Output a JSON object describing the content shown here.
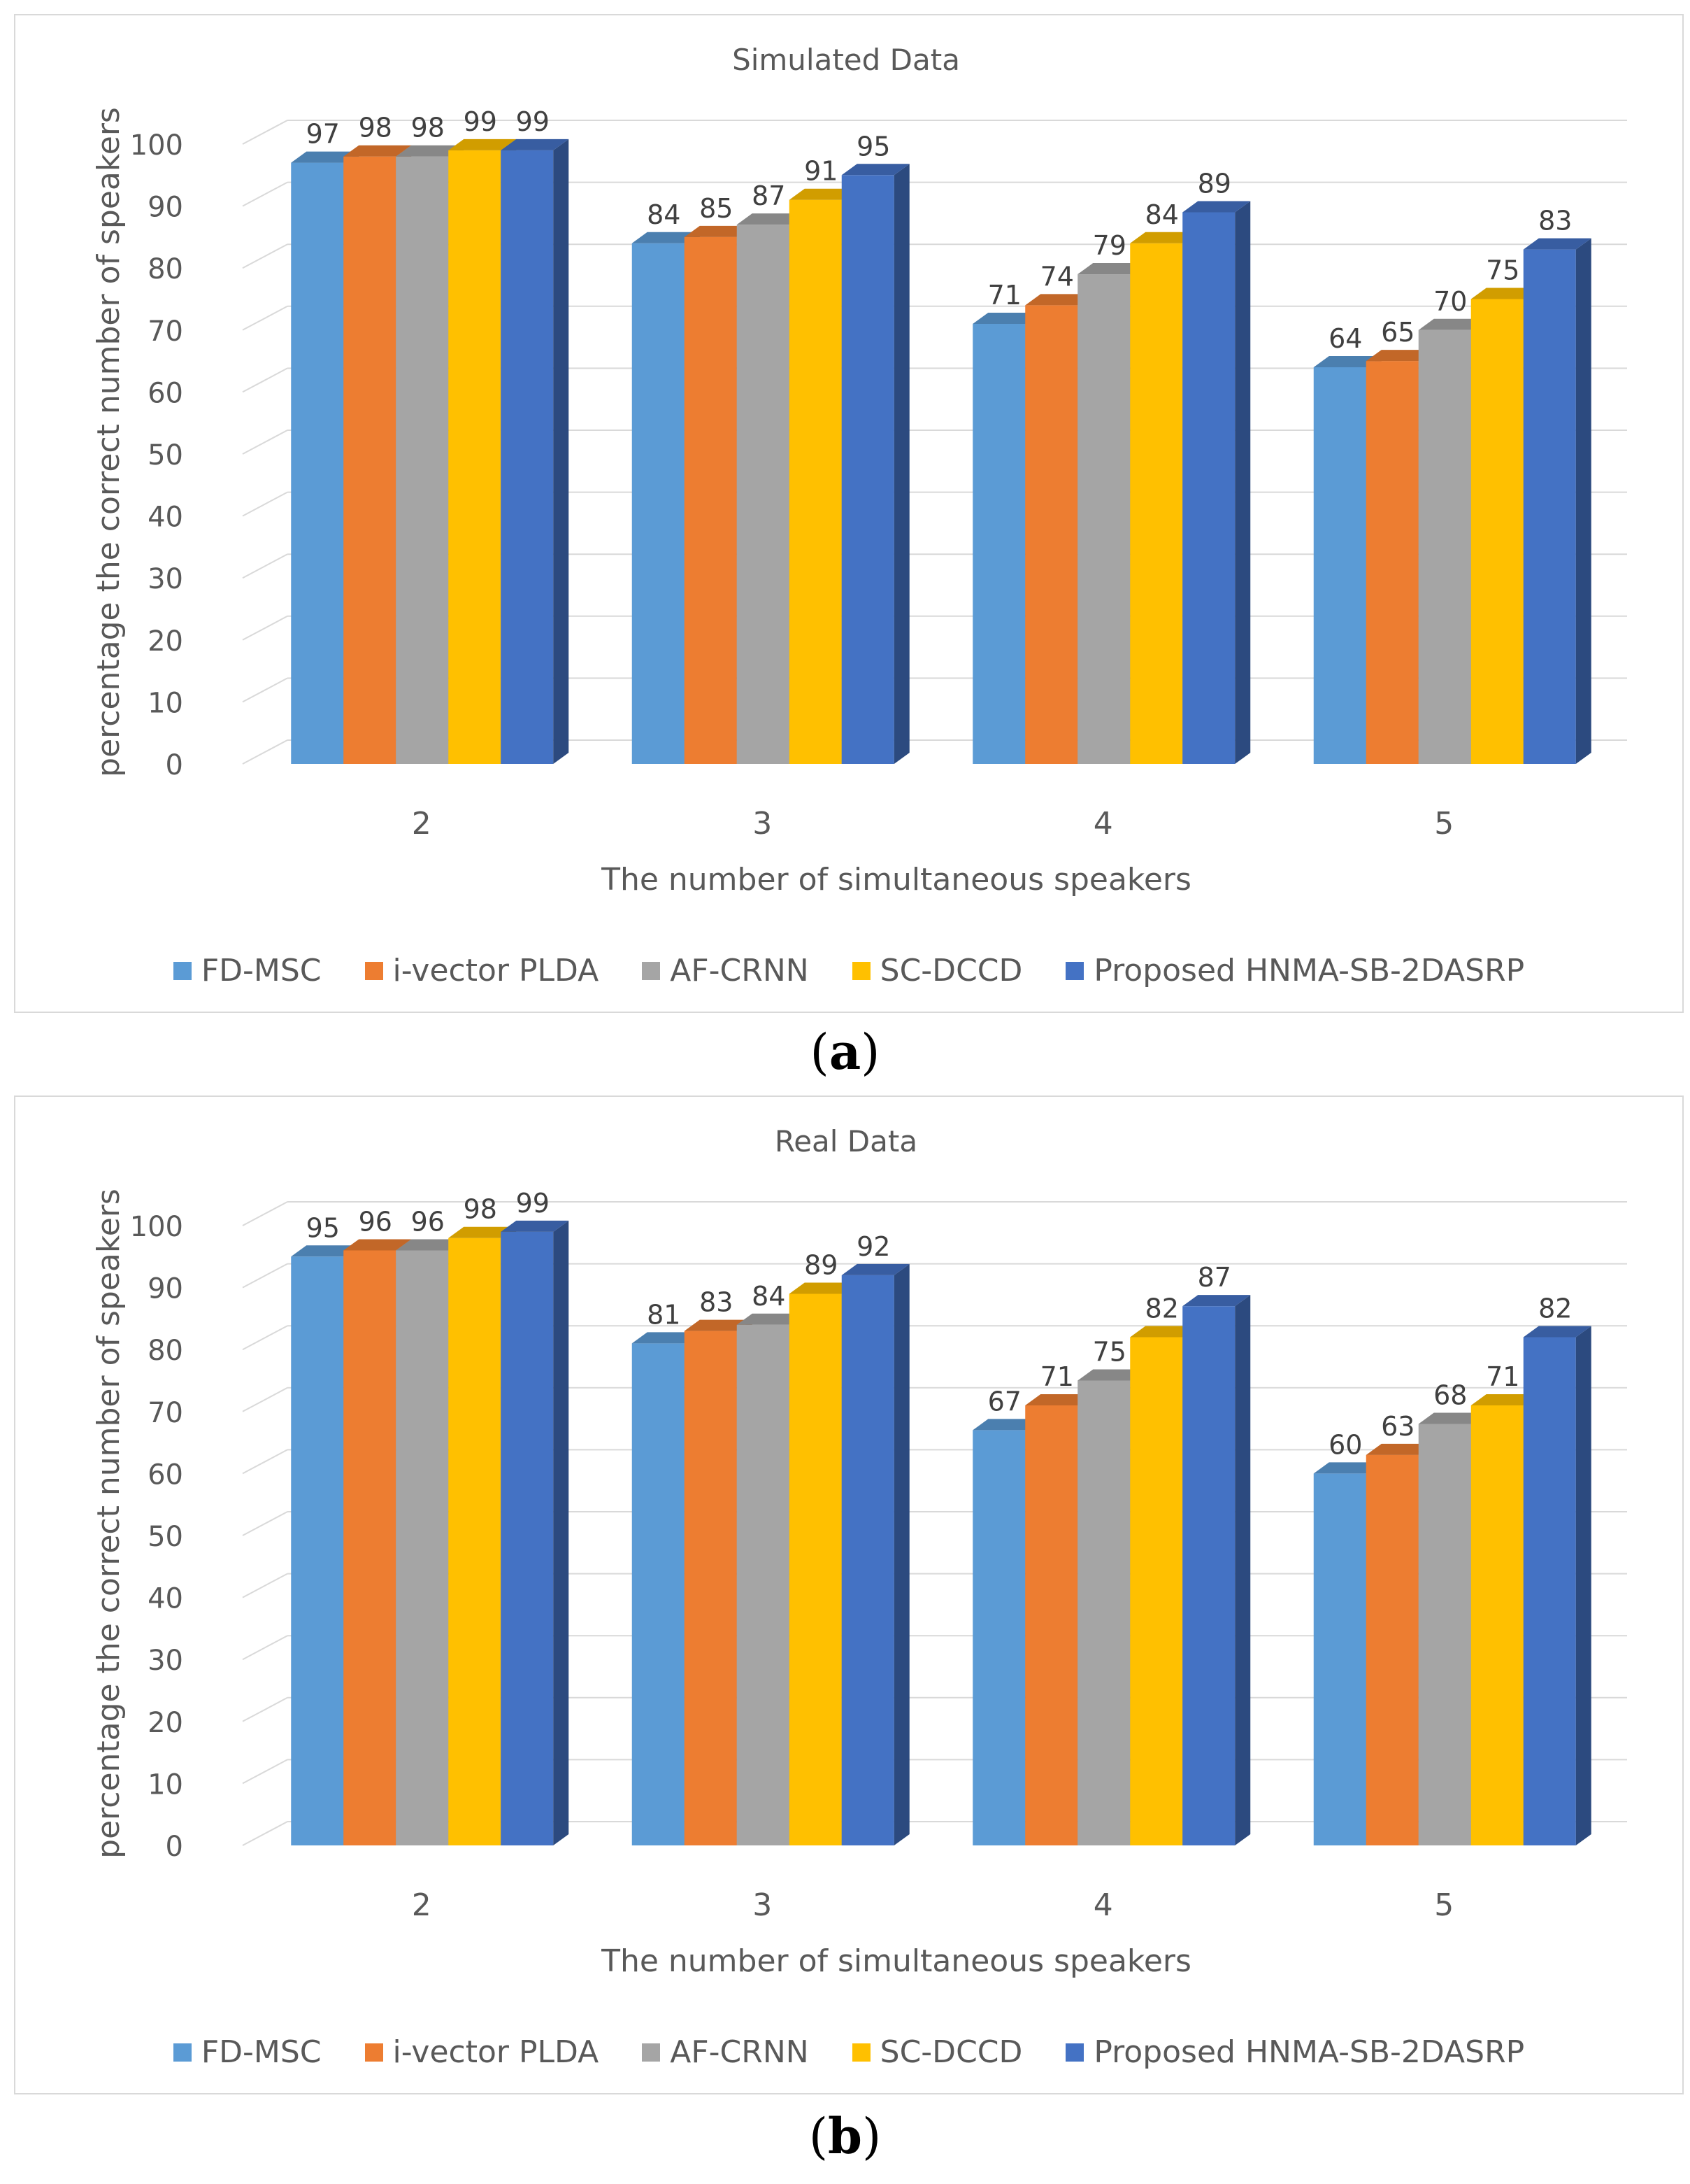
{
  "chart_data": [
    {
      "type": "bar",
      "title": "Simulated Data",
      "caption_prefix": "(",
      "caption_letter": "a",
      "caption_suffix": ")",
      "xlabel": "The number of simultaneous speakers",
      "ylabel": "percentage the correct number of speakers",
      "ylim": [
        0,
        100
      ],
      "yticks": [
        "0",
        "10",
        "20",
        "30",
        "40",
        "50",
        "60",
        "70",
        "80",
        "90",
        "100"
      ],
      "categories": [
        "2",
        "3",
        "4",
        "5"
      ],
      "grid": true,
      "legend_position": "bottom",
      "series": [
        {
          "name": "FD-MSC",
          "color": "#5b9bd5",
          "values": [
            97,
            84,
            71,
            64
          ]
        },
        {
          "name": "i-vector PLDA",
          "color": "#ed7d31",
          "values": [
            98,
            85,
            74,
            65
          ]
        },
        {
          "name": "AF-CRNN",
          "color": "#a5a5a5",
          "values": [
            98,
            87,
            79,
            70
          ]
        },
        {
          "name": "SC-DCCD",
          "color": "#ffc000",
          "values": [
            99,
            91,
            84,
            75
          ]
        },
        {
          "name": "Proposed HNMA-SB-2DASRP",
          "color": "#4472c4",
          "values": [
            99,
            95,
            89,
            83
          ]
        }
      ]
    },
    {
      "type": "bar",
      "title": "Real Data",
      "caption_prefix": "(",
      "caption_letter": "b",
      "caption_suffix": ")",
      "xlabel": "The number of simultaneous speakers",
      "ylabel": "percentage the correct number of speakers",
      "ylim": [
        0,
        100
      ],
      "yticks": [
        "0",
        "10",
        "20",
        "30",
        "40",
        "50",
        "60",
        "70",
        "80",
        "90",
        "100"
      ],
      "categories": [
        "2",
        "3",
        "4",
        "5"
      ],
      "grid": true,
      "legend_position": "bottom",
      "series": [
        {
          "name": "FD-MSC",
          "color": "#5b9bd5",
          "values": [
            95,
            81,
            67,
            60
          ]
        },
        {
          "name": "i-vector PLDA",
          "color": "#ed7d31",
          "values": [
            96,
            83,
            71,
            63
          ]
        },
        {
          "name": "AF-CRNN",
          "color": "#a5a5a5",
          "values": [
            96,
            84,
            75,
            68
          ]
        },
        {
          "name": "SC-DCCD",
          "color": "#ffc000",
          "values": [
            98,
            89,
            82,
            71
          ]
        },
        {
          "name": "Proposed HNMA-SB-2DASRP",
          "color": "#4472c4",
          "values": [
            99,
            92,
            87,
            82
          ]
        }
      ]
    }
  ]
}
